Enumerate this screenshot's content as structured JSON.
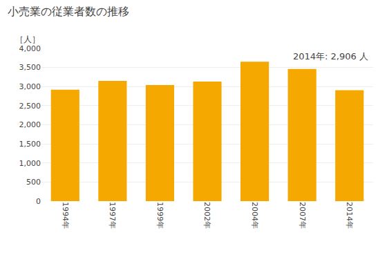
{
  "chart_data": {
    "type": "bar",
    "title": "小売業の従業者数の推移",
    "ylabel": "［人］",
    "annotation": "2014年: 2,906 人",
    "categories": [
      "1994年",
      "1997年",
      "1999年",
      "2002年",
      "2004年",
      "2007年",
      "2014年"
    ],
    "values": [
      2920,
      3150,
      3040,
      3130,
      3650,
      3460,
      2906
    ],
    "color": "#F5A800",
    "ylim": [
      0,
      4000
    ],
    "yticks": [
      0,
      500,
      {
        "value": 1000,
        "label": "1,000"
      },
      {
        "value": 1500,
        "label": "1,500"
      },
      {
        "value": 2000,
        "label": "2,000"
      },
      {
        "value": 2500,
        "label": "2,500"
      },
      {
        "value": 3000,
        "label": "3,000"
      },
      {
        "value": 3500,
        "label": "3,500"
      },
      {
        "value": 4000,
        "label": "4,000"
      }
    ],
    "grid": true
  }
}
